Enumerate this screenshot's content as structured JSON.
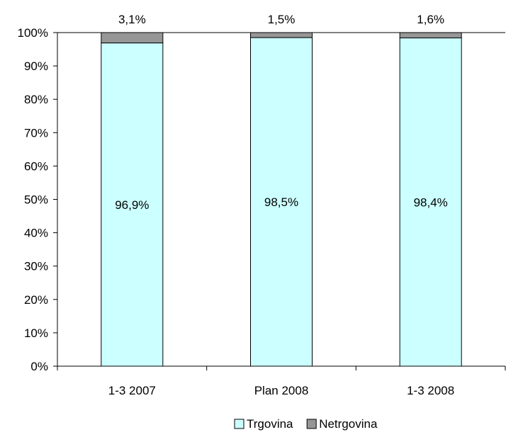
{
  "chart_data": {
    "type": "bar",
    "stacked": true,
    "percent_stacked": true,
    "categories": [
      "1-3 2007",
      "Plan 2008",
      "1-3 2008"
    ],
    "series": [
      {
        "name": "Trgovina",
        "values": [
          96.9,
          98.5,
          98.4
        ],
        "labels": [
          "96,9%",
          "98,5%",
          "98,4%"
        ],
        "color": "#ccffff"
      },
      {
        "name": "Netrgovina",
        "values": [
          3.1,
          1.5,
          1.6
        ],
        "labels": [
          "3,1%",
          "1,5%",
          "1,6%"
        ],
        "color": "#969696"
      }
    ],
    "ylim": [
      0,
      100
    ],
    "yticks": [
      0,
      10,
      20,
      30,
      40,
      50,
      60,
      70,
      80,
      90,
      100
    ],
    "ytick_labels": [
      "0%",
      "10%",
      "20%",
      "30%",
      "40%",
      "50%",
      "60%",
      "70%",
      "80%",
      "90%",
      "100%"
    ],
    "title": "",
    "xlabel": "",
    "ylabel": "",
    "grid": false,
    "legend": {
      "position": "bottom",
      "entries": [
        "Trgovina",
        "Netrgovina"
      ]
    }
  }
}
